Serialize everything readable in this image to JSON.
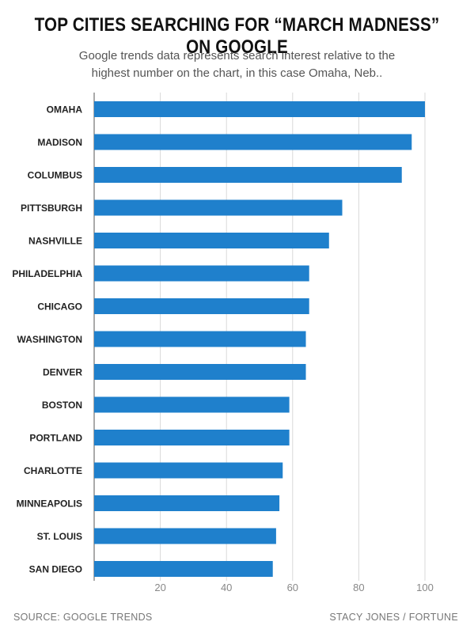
{
  "header": {
    "title": "TOP CITIES SEARCHING FOR “MARCH MADNESS” ON GOOGLE",
    "subtitle_line1": "Google trends data represents search interest relative to the",
    "subtitle_line2": "highest number on the chart, in this case Omaha, Neb.."
  },
  "footer": {
    "source": "SOURCE: GOOGLE TRENDS",
    "credit": "STACY JONES / FORTUNE"
  },
  "colors": {
    "bar": "#1f80cc",
    "grid": "#d9d9d9",
    "axis": "#555555",
    "tick_text": "#888888",
    "category_text": "#222222"
  },
  "chart_data": {
    "type": "bar",
    "orientation": "horizontal",
    "categories": [
      "OMAHA",
      "MADISON",
      "COLUMBUS",
      "PITTSBURGH",
      "NASHVILLE",
      "PHILADELPHIA",
      "CHICAGO",
      "WASHINGTON",
      "DENVER",
      "BOSTON",
      "PORTLAND",
      "CHARLOTTE",
      "MINNEAPOLIS",
      "ST. LOUIS",
      "SAN DIEGO"
    ],
    "values": [
      100,
      96,
      93,
      75,
      71,
      65,
      65,
      64,
      64,
      59,
      59,
      57,
      56,
      55,
      54
    ],
    "xlim": [
      0,
      100
    ],
    "xticks": [
      20,
      40,
      60,
      80,
      100
    ],
    "grid": true,
    "title": "TOP CITIES SEARCHING FOR “MARCH MADNESS” ON GOOGLE",
    "xlabel": "",
    "ylabel": ""
  }
}
